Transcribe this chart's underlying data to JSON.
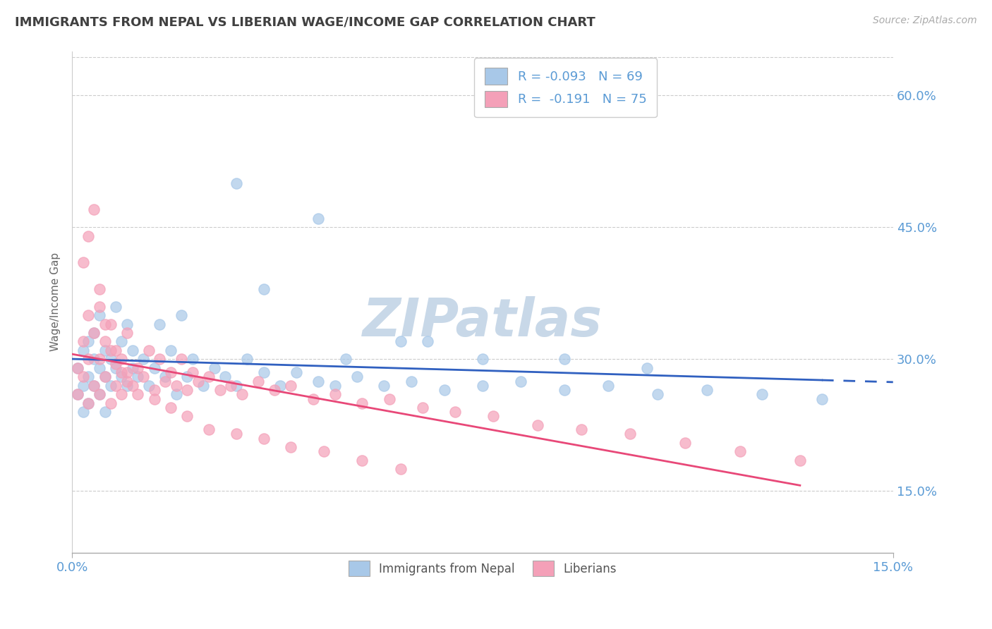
{
  "title": "IMMIGRANTS FROM NEPAL VS LIBERIAN WAGE/INCOME GAP CORRELATION CHART",
  "source_text": "Source: ZipAtlas.com",
  "ylabel": "Wage/Income Gap",
  "y_tick_values": [
    0.15,
    0.3,
    0.45,
    0.6
  ],
  "x_min": 0.0,
  "x_max": 0.15,
  "y_min": 0.08,
  "y_max": 0.65,
  "legend_r1": "-0.093",
  "legend_n1": "69",
  "legend_r2": "-0.191",
  "legend_n2": "75",
  "color_nepal": "#a8c8e8",
  "color_liberia": "#f4a0b8",
  "color_nepal_line": "#3060c0",
  "color_liberia_line": "#e84878",
  "color_title": "#404040",
  "color_axis_labels": "#5b9bd5",
  "color_legend_text": "#5b9bd5",
  "watermark_color": "#c8d8e8",
  "nepal_x": [
    0.001,
    0.001,
    0.002,
    0.002,
    0.002,
    0.003,
    0.003,
    0.003,
    0.004,
    0.004,
    0.004,
    0.005,
    0.005,
    0.005,
    0.006,
    0.006,
    0.006,
    0.007,
    0.007,
    0.008,
    0.008,
    0.009,
    0.009,
    0.01,
    0.01,
    0.011,
    0.011,
    0.012,
    0.013,
    0.014,
    0.015,
    0.016,
    0.017,
    0.018,
    0.019,
    0.02,
    0.021,
    0.022,
    0.024,
    0.026,
    0.028,
    0.03,
    0.032,
    0.035,
    0.038,
    0.041,
    0.045,
    0.048,
    0.052,
    0.057,
    0.062,
    0.068,
    0.075,
    0.082,
    0.09,
    0.098,
    0.107,
    0.116,
    0.126,
    0.137,
    0.03,
    0.045,
    0.06,
    0.075,
    0.09,
    0.105,
    0.035,
    0.05,
    0.065
  ],
  "nepal_y": [
    0.26,
    0.29,
    0.27,
    0.31,
    0.24,
    0.28,
    0.32,
    0.25,
    0.3,
    0.27,
    0.33,
    0.26,
    0.29,
    0.35,
    0.28,
    0.31,
    0.24,
    0.3,
    0.27,
    0.29,
    0.36,
    0.28,
    0.32,
    0.27,
    0.34,
    0.29,
    0.31,
    0.28,
    0.3,
    0.27,
    0.29,
    0.34,
    0.28,
    0.31,
    0.26,
    0.35,
    0.28,
    0.3,
    0.27,
    0.29,
    0.28,
    0.27,
    0.3,
    0.285,
    0.27,
    0.285,
    0.275,
    0.27,
    0.28,
    0.27,
    0.275,
    0.265,
    0.27,
    0.275,
    0.265,
    0.27,
    0.26,
    0.265,
    0.26,
    0.255,
    0.5,
    0.46,
    0.32,
    0.3,
    0.3,
    0.29,
    0.38,
    0.3,
    0.32
  ],
  "liberia_x": [
    0.001,
    0.001,
    0.002,
    0.002,
    0.003,
    0.003,
    0.003,
    0.004,
    0.004,
    0.005,
    0.005,
    0.005,
    0.006,
    0.006,
    0.007,
    0.007,
    0.008,
    0.008,
    0.009,
    0.009,
    0.01,
    0.01,
    0.011,
    0.012,
    0.013,
    0.014,
    0.015,
    0.016,
    0.017,
    0.018,
    0.019,
    0.02,
    0.021,
    0.022,
    0.023,
    0.025,
    0.027,
    0.029,
    0.031,
    0.034,
    0.037,
    0.04,
    0.044,
    0.048,
    0.053,
    0.058,
    0.064,
    0.07,
    0.077,
    0.085,
    0.093,
    0.102,
    0.112,
    0.122,
    0.133,
    0.002,
    0.003,
    0.004,
    0.005,
    0.006,
    0.007,
    0.008,
    0.009,
    0.01,
    0.012,
    0.015,
    0.018,
    0.021,
    0.025,
    0.03,
    0.035,
    0.04,
    0.046,
    0.053,
    0.06
  ],
  "liberia_y": [
    0.26,
    0.29,
    0.28,
    0.32,
    0.25,
    0.3,
    0.35,
    0.27,
    0.33,
    0.26,
    0.3,
    0.38,
    0.28,
    0.32,
    0.25,
    0.34,
    0.27,
    0.31,
    0.26,
    0.3,
    0.285,
    0.33,
    0.27,
    0.29,
    0.28,
    0.31,
    0.265,
    0.3,
    0.275,
    0.285,
    0.27,
    0.3,
    0.265,
    0.285,
    0.275,
    0.28,
    0.265,
    0.27,
    0.26,
    0.275,
    0.265,
    0.27,
    0.255,
    0.26,
    0.25,
    0.255,
    0.245,
    0.24,
    0.235,
    0.225,
    0.22,
    0.215,
    0.205,
    0.195,
    0.185,
    0.41,
    0.44,
    0.47,
    0.36,
    0.34,
    0.31,
    0.295,
    0.285,
    0.275,
    0.26,
    0.255,
    0.245,
    0.235,
    0.22,
    0.215,
    0.21,
    0.2,
    0.195,
    0.185,
    0.175
  ]
}
